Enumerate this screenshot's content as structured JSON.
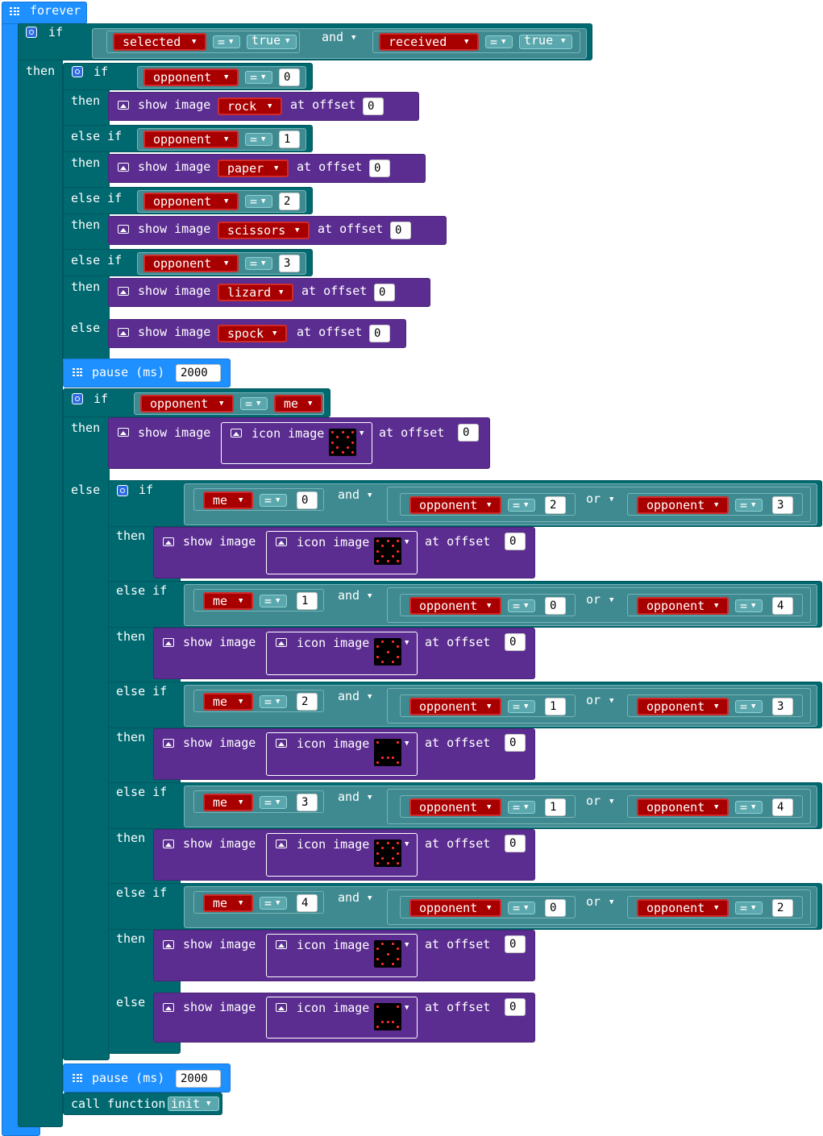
{
  "labels": {
    "forever": "forever",
    "if": "if",
    "then": "then",
    "else": "else",
    "else_if": "else if",
    "and": "and",
    "or": "or",
    "eq": "=",
    "show_image": "show image",
    "at_offset": "at offset",
    "icon_image": "icon image",
    "pause": "pause (ms)",
    "call_function": "call function"
  },
  "top_condition": {
    "left": {
      "var": "selected",
      "op": "=",
      "value": "true"
    },
    "joiner": "and",
    "right": {
      "var": "received",
      "op": "=",
      "value": "true"
    }
  },
  "opponent_display": {
    "var": "opponent",
    "cases": [
      {
        "value": "0",
        "image": "rock",
        "offset": "0"
      },
      {
        "value": "1",
        "image": "paper",
        "offset": "0"
      },
      {
        "value": "2",
        "image": "scissors",
        "offset": "0"
      },
      {
        "value": "3",
        "image": "lizard",
        "offset": "0"
      }
    ],
    "else_image": "spock",
    "else_offset": "0"
  },
  "pause_ms": "2000",
  "tie_check": {
    "left": "opponent",
    "op": "=",
    "right": "me",
    "offset": "0"
  },
  "outcomes": {
    "me_var": "me",
    "opp_var": "opponent",
    "rows": [
      {
        "me": "0",
        "opp_a": "2",
        "opp_b": "3",
        "offset": "0"
      },
      {
        "me": "1",
        "opp_a": "0",
        "opp_b": "4",
        "offset": "0"
      },
      {
        "me": "2",
        "opp_a": "1",
        "opp_b": "3",
        "offset": "0"
      },
      {
        "me": "3",
        "opp_a": "1",
        "opp_b": "4",
        "offset": "0"
      },
      {
        "me": "4",
        "opp_a": "0",
        "opp_b": "2",
        "offset": "0"
      }
    ],
    "else_offset": "0"
  },
  "final_pause_ms": "2000",
  "call_target": "init",
  "colors": {
    "basic": "#1e90ff",
    "logic": "#006970",
    "images": "#5c2d91",
    "variables": "#a80000"
  },
  "icons": [
    "grid-icon",
    "gear-icon",
    "image-icon",
    "dropdown-arrow-icon"
  ]
}
